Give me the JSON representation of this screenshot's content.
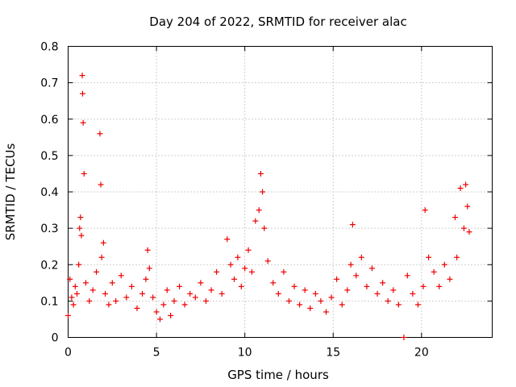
{
  "chart_data": {
    "type": "scatter",
    "title": "Day 204 of 2022, SRMTID for receiver alac",
    "xlabel": "GPS time / hours",
    "ylabel": "SRMTID / TECUs",
    "xlim": [
      0,
      24
    ],
    "ylim": [
      0,
      0.8
    ],
    "x_ticks": [
      0,
      5,
      10,
      15,
      20
    ],
    "x_tick_labels": [
      "0",
      "5",
      "10",
      "15",
      "20"
    ],
    "y_ticks": [
      0,
      0.1,
      0.2,
      0.3,
      0.4,
      0.5,
      0.6,
      0.7,
      0.8
    ],
    "y_tick_labels": [
      "0",
      "0.1",
      "0.2",
      "0.3",
      "0.4",
      "0.5",
      "0.6",
      "0.7",
      "0.8"
    ],
    "grid": true,
    "marker": "+",
    "color": "#ee0000",
    "series": [
      {
        "name": "SRMTID",
        "x": [
          0.0,
          0.1,
          0.2,
          0.3,
          0.4,
          0.5,
          0.6,
          0.65,
          0.7,
          0.75,
          0.8,
          0.82,
          0.85,
          0.9,
          1.0,
          1.2,
          1.4,
          1.6,
          1.8,
          1.85,
          1.9,
          2.0,
          2.1,
          2.3,
          2.5,
          2.7,
          3.0,
          3.3,
          3.6,
          3.9,
          4.2,
          4.4,
          4.5,
          4.6,
          4.8,
          5.0,
          5.2,
          5.4,
          5.6,
          5.8,
          6.0,
          6.3,
          6.6,
          6.9,
          7.2,
          7.5,
          7.8,
          8.1,
          8.4,
          8.7,
          9.0,
          9.2,
          9.4,
          9.6,
          9.8,
          10.0,
          10.2,
          10.4,
          10.6,
          10.8,
          10.9,
          11.0,
          11.1,
          11.3,
          11.6,
          11.9,
          12.2,
          12.5,
          12.8,
          13.1,
          13.4,
          13.7,
          14.0,
          14.3,
          14.6,
          14.9,
          15.2,
          15.5,
          15.8,
          16.0,
          16.1,
          16.3,
          16.6,
          16.9,
          17.2,
          17.5,
          17.8,
          18.1,
          18.4,
          18.7,
          19.0,
          19.2,
          19.5,
          19.8,
          20.1,
          20.2,
          20.4,
          20.7,
          21.0,
          21.3,
          21.6,
          21.9,
          22.0,
          22.2,
          22.4,
          22.5,
          22.6,
          22.7
        ],
        "y": [
          0.06,
          0.16,
          0.11,
          0.09,
          0.14,
          0.12,
          0.2,
          0.3,
          0.33,
          0.28,
          0.72,
          0.67,
          0.59,
          0.45,
          0.15,
          0.1,
          0.13,
          0.18,
          0.56,
          0.42,
          0.22,
          0.26,
          0.12,
          0.09,
          0.15,
          0.1,
          0.17,
          0.11,
          0.14,
          0.08,
          0.12,
          0.16,
          0.24,
          0.19,
          0.11,
          0.07,
          0.05,
          0.09,
          0.13,
          0.06,
          0.1,
          0.14,
          0.09,
          0.12,
          0.11,
          0.15,
          0.1,
          0.13,
          0.18,
          0.12,
          0.27,
          0.2,
          0.16,
          0.22,
          0.14,
          0.19,
          0.24,
          0.18,
          0.32,
          0.35,
          0.45,
          0.4,
          0.3,
          0.21,
          0.15,
          0.12,
          0.18,
          0.1,
          0.14,
          0.09,
          0.13,
          0.08,
          0.12,
          0.1,
          0.07,
          0.11,
          0.16,
          0.09,
          0.13,
          0.2,
          0.31,
          0.17,
          0.22,
          0.14,
          0.19,
          0.12,
          0.15,
          0.1,
          0.13,
          0.09,
          0.0,
          0.17,
          0.12,
          0.09,
          0.14,
          0.35,
          0.22,
          0.18,
          0.14,
          0.2,
          0.16,
          0.33,
          0.22,
          0.41,
          0.3,
          0.42,
          0.36,
          0.29
        ]
      }
    ]
  }
}
